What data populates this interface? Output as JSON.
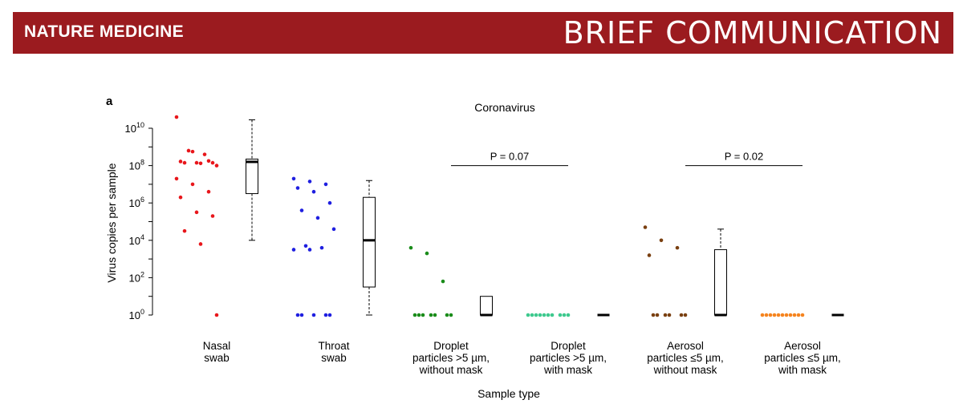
{
  "header": {
    "journal": "NATURE MEDICINE",
    "section": "BRIEF COMMUNICATION"
  },
  "chart_data": {
    "type": "scatter",
    "panel_label": "a",
    "title": "Coronavirus",
    "xlabel": "Sample type",
    "ylabel": "Virus copies per sample",
    "yscale": "log10",
    "ylim": [
      1,
      10000000000
    ],
    "yticks": [
      {
        "exp": 0,
        "base": "10",
        "sup": "0"
      },
      {
        "exp": 2,
        "base": "10",
        "sup": "2"
      },
      {
        "exp": 4,
        "base": "10",
        "sup": "4"
      },
      {
        "exp": 6,
        "base": "10",
        "sup": "6"
      },
      {
        "exp": 8,
        "base": "10",
        "sup": "8"
      },
      {
        "exp": 10,
        "base": "10",
        "sup": "10"
      }
    ],
    "grid": false,
    "categories": [
      {
        "lines": [
          "Nasal",
          "swab"
        ]
      },
      {
        "lines": [
          "Throat",
          "swab"
        ]
      },
      {
        "lines": [
          "Droplet",
          "particles >5 µm,",
          "without mask"
        ]
      },
      {
        "lines": [
          "Droplet",
          "particles >5 µm,",
          "with mask"
        ]
      },
      {
        "lines": [
          "Aerosol",
          "particles ≤5 µm,",
          "without mask"
        ]
      },
      {
        "lines": [
          "Aerosol",
          "particles ≤5 µm,",
          "with mask"
        ]
      }
    ],
    "series": [
      {
        "color": "#e8161b",
        "log10_values": [
          10.6,
          8.75,
          8.25,
          8.22,
          8.15,
          8.15,
          8.15,
          8.12,
          8.0,
          8.8,
          8.6,
          7.3,
          7.0,
          6.6,
          6.3,
          5.5,
          5.3,
          4.5,
          3.8,
          0.0
        ],
        "box": {
          "whisker_low": 4.0,
          "q1": 6.5,
          "median": 8.2,
          "q3": 8.35,
          "whisker_high": 10.45
        }
      },
      {
        "color": "#1f1fe0",
        "log10_values": [
          7.3,
          7.15,
          7.0,
          6.8,
          6.6,
          6.0,
          5.6,
          5.2,
          4.6,
          3.7,
          3.6,
          3.5,
          3.5,
          0.0,
          0.0,
          0.0,
          0.0,
          0.0
        ],
        "box": {
          "whisker_low": 0.0,
          "q1": 1.5,
          "median": 4.0,
          "q3": 6.3,
          "whisker_high": 7.2
        }
      },
      {
        "color": "#1a8c1a",
        "log10_values": [
          3.6,
          3.3,
          1.8,
          0.0,
          0.0,
          0.0,
          0.0,
          0.0,
          0.0,
          0.0
        ],
        "box": {
          "whisker_low": 0.0,
          "q1": 0.0,
          "median": 0.0,
          "q3": 1.0,
          "whisker_high": 1.0
        }
      },
      {
        "color": "#3ec98e",
        "log10_values": [
          0.0,
          0.0,
          0.0,
          0.0,
          0.0,
          0.0,
          0.0,
          0.0,
          0.0,
          0.0
        ],
        "box": {
          "whisker_low": 0.0,
          "q1": 0.0,
          "median": 0.0,
          "q3": 0.0,
          "whisker_high": 0.0
        }
      },
      {
        "color": "#7a4011",
        "log10_values": [
          4.7,
          4.0,
          3.6,
          3.2,
          0.0,
          0.0,
          0.0,
          0.0,
          0.0,
          0.0
        ],
        "box": {
          "whisker_low": 0.0,
          "q1": 0.0,
          "median": 0.0,
          "q3": 3.5,
          "whisker_high": 4.6
        }
      },
      {
        "color": "#f5841f",
        "log10_values": [
          0.0,
          0.0,
          0.0,
          0.0,
          0.0,
          0.0,
          0.0,
          0.0,
          0.0,
          0.0,
          0.0
        ],
        "box": {
          "whisker_low": 0.0,
          "q1": 0.0,
          "median": 0.0,
          "q3": 0.0,
          "whisker_high": 0.0
        }
      }
    ],
    "annotations": [
      {
        "text": "P = 0.07",
        "from_category": 2,
        "to_category": 3,
        "log10_y": 8.0
      },
      {
        "text": "P = 0.02",
        "from_category": 4,
        "to_category": 5,
        "log10_y": 8.0
      }
    ]
  }
}
